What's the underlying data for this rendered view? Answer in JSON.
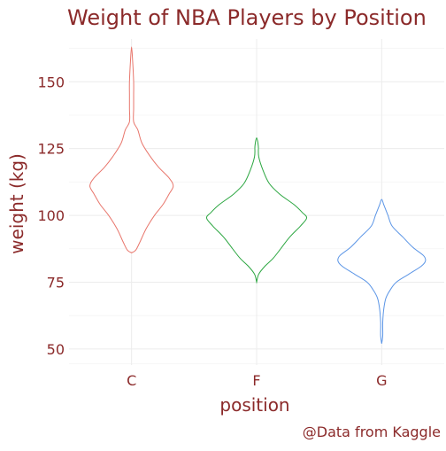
{
  "chart_data": {
    "type": "violin",
    "title": "Weight of NBA Players by Position",
    "xlabel": "position",
    "ylabel": "weight (kg)",
    "caption": "@Data from Kaggle",
    "categories": [
      "C",
      "F",
      "G"
    ],
    "colors": [
      "#E8766C",
      "#2BA640",
      "#5B95E6"
    ],
    "ylim": [
      44,
      166
    ],
    "yticks": [
      50,
      75,
      100,
      125,
      150
    ],
    "grid": true,
    "legend": "none",
    "violins": [
      {
        "category": "C",
        "profile": [
          [
            86,
            0
          ],
          [
            87,
            2
          ],
          [
            90,
            4
          ],
          [
            95,
            7
          ],
          [
            100,
            11
          ],
          [
            104,
            15
          ],
          [
            108,
            18
          ],
          [
            111,
            20
          ],
          [
            114,
            18
          ],
          [
            118,
            13
          ],
          [
            122,
            9
          ],
          [
            127,
            5
          ],
          [
            132,
            3
          ],
          [
            135,
            1
          ],
          [
            140,
            1
          ],
          [
            145,
            1
          ],
          [
            150,
            1
          ],
          [
            158,
            0.5
          ],
          [
            163,
            0
          ]
        ]
      },
      {
        "category": "F",
        "profile": [
          [
            75,
            0
          ],
          [
            78,
            1
          ],
          [
            81,
            4
          ],
          [
            84,
            8
          ],
          [
            88,
            12
          ],
          [
            92,
            16
          ],
          [
            96,
            21
          ],
          [
            99,
            24
          ],
          [
            101,
            22
          ],
          [
            104,
            18
          ],
          [
            108,
            11
          ],
          [
            112,
            6
          ],
          [
            117,
            3
          ],
          [
            122,
            1
          ],
          [
            126,
            0.8
          ],
          [
            129,
            0
          ]
        ]
      },
      {
        "category": "G",
        "profile": [
          [
            52,
            0
          ],
          [
            55,
            0.5
          ],
          [
            60,
            0.5
          ],
          [
            65,
            1
          ],
          [
            69,
            2
          ],
          [
            72,
            4
          ],
          [
            75,
            7
          ],
          [
            78,
            13
          ],
          [
            81,
            19
          ],
          [
            83,
            21
          ],
          [
            85,
            20
          ],
          [
            88,
            15
          ],
          [
            92,
            10
          ],
          [
            96,
            5
          ],
          [
            100,
            3
          ],
          [
            104,
            1
          ],
          [
            106,
            0
          ]
        ]
      }
    ]
  }
}
